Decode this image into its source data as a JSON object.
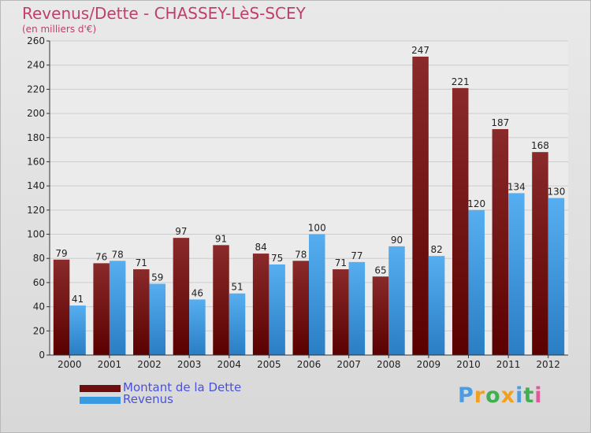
{
  "title": "Revenus/Dette - CHASSEY-LèS-SCEY",
  "subtitle": "(en milliers d'€)",
  "logo": {
    "letters": [
      "P",
      "r",
      "o",
      "x",
      "i",
      "t",
      "i"
    ],
    "colors": [
      "#4d9be0",
      "#f2a020",
      "#3fb04f",
      "#f2a020",
      "#4d9be0",
      "#3fb04f",
      "#e05a9a"
    ]
  },
  "colors": {
    "dette": "#7a1414",
    "revenus": "#3a9ae0",
    "grid": "#cccccc"
  },
  "chart_data": {
    "type": "bar",
    "categories": [
      "2000",
      "2001",
      "2002",
      "2003",
      "2004",
      "2005",
      "2006",
      "2007",
      "2008",
      "2009",
      "2010",
      "2011",
      "2012"
    ],
    "series": [
      {
        "name": "Montant de la Dette",
        "values": [
          79,
          76,
          71,
          97,
          91,
          84,
          78,
          71,
          65,
          247,
          221,
          187,
          168
        ]
      },
      {
        "name": "Revenus",
        "values": [
          41,
          78,
          59,
          46,
          51,
          75,
          100,
          77,
          90,
          82,
          120,
          134,
          130
        ]
      }
    ],
    "ylim": [
      0,
      260
    ],
    "yticks": [
      0,
      20,
      40,
      60,
      80,
      100,
      120,
      140,
      160,
      180,
      200,
      220,
      240,
      260
    ],
    "grid": true,
    "legend": "bottom-left"
  }
}
